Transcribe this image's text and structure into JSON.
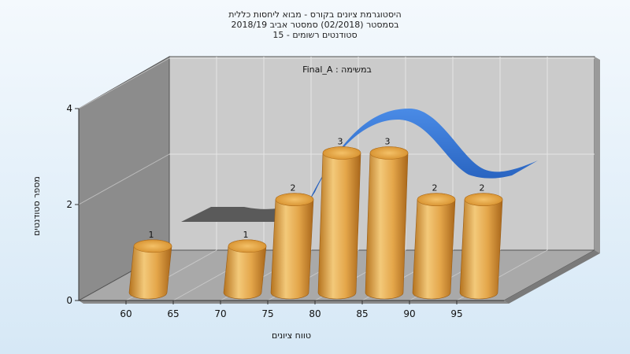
{
  "chart_data": {
    "type": "bar",
    "title": [
      "היסטוגרמת ציונים בקורס - מבוא ליחסות כללית",
      "בסמסטר  (02/2018)  סמסטר אביב 2018/19",
      "סטודנטים רשומים - 15"
    ],
    "annotation": "Final_A : במשימה",
    "xlabel": "טווח ציונים",
    "ylabel": "מספר סטודנטים",
    "x_ticks": [
      60,
      65,
      70,
      75,
      80,
      85,
      90,
      95
    ],
    "x_range": [
      55,
      100
    ],
    "ylim": [
      0,
      4
    ],
    "y_ticks": [
      0,
      2,
      4
    ],
    "bars": [
      {
        "x": 60,
        "value": 1
      },
      {
        "x": 70,
        "value": 1
      },
      {
        "x": 75,
        "value": 2
      },
      {
        "x": 80,
        "value": 3
      },
      {
        "x": 85,
        "value": 3
      },
      {
        "x": 90,
        "value": 2
      },
      {
        "x": 95,
        "value": 2
      }
    ],
    "grid": true,
    "colors": {
      "bar": "#e8a13a",
      "curve": "#2f6fd0",
      "wall": "#8a8a8a",
      "back_wall": "#c9c9c9"
    }
  }
}
